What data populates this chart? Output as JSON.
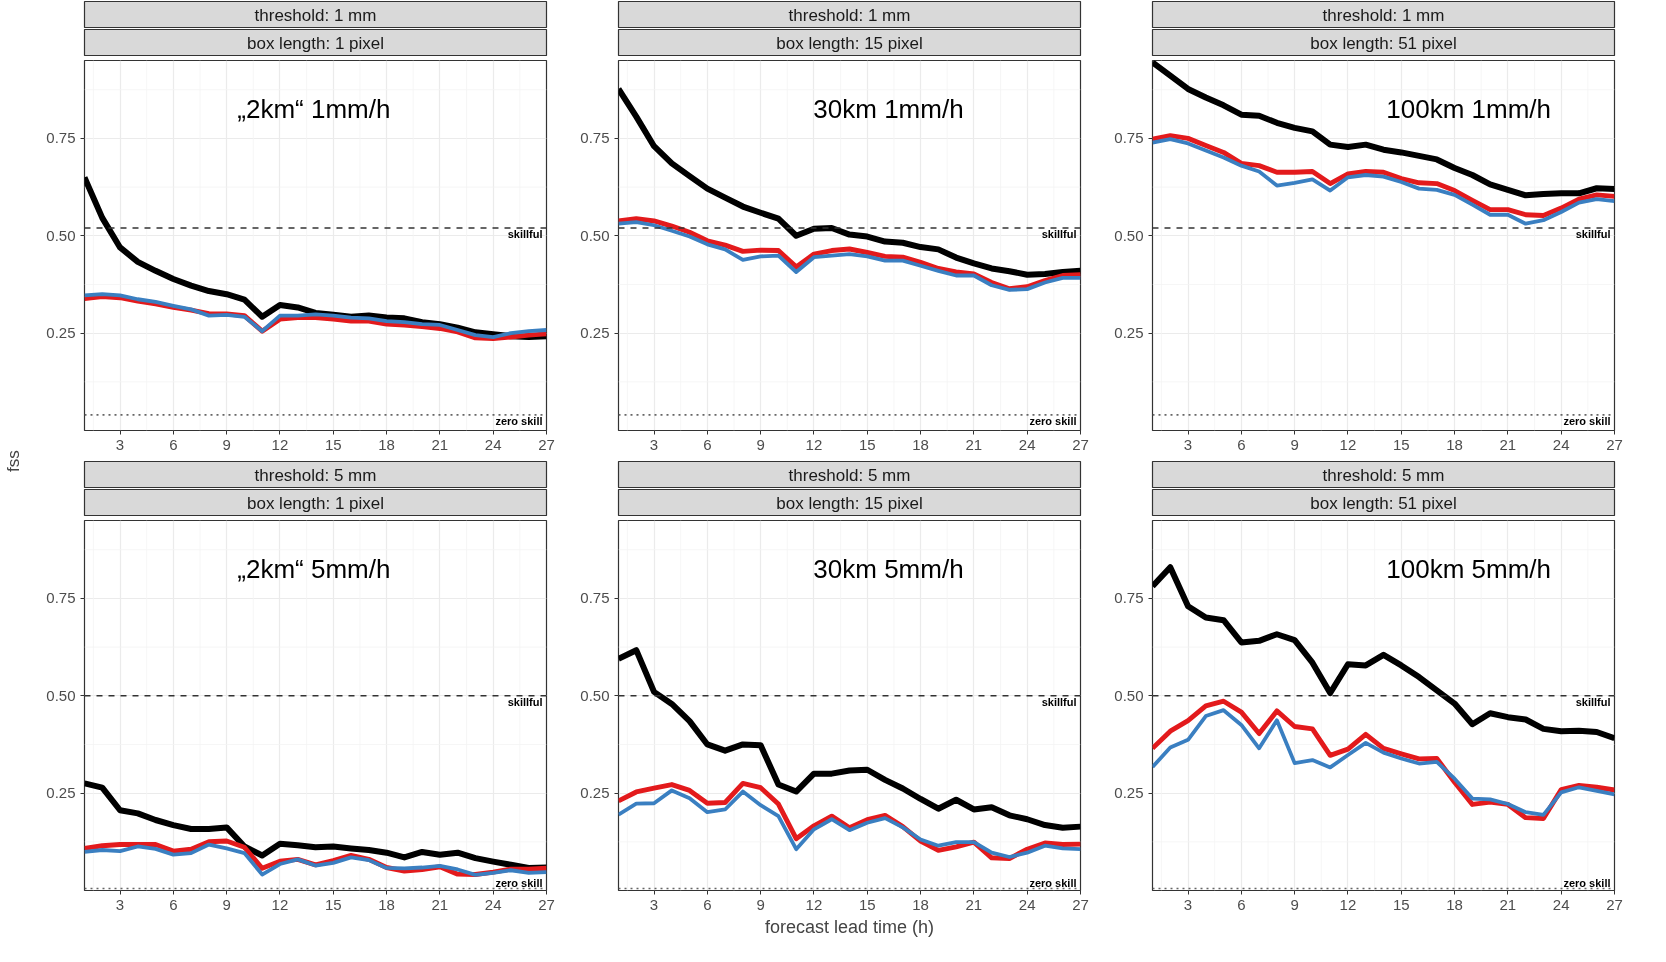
{
  "chart_data": [
    {
      "type": "line",
      "title": "threshold: 1 mm",
      "subtitle": "box length: 1 pixel",
      "ylabel": "fss",
      "annotations": [
        "„2km“    1mm/h"
      ],
      "x": [
        1,
        2,
        3,
        4,
        5,
        6,
        7,
        8,
        9,
        10,
        11,
        12,
        13,
        14,
        15,
        16,
        17,
        18,
        19,
        20,
        21,
        22,
        23,
        24,
        25,
        26,
        27
      ],
      "xlim": [
        1,
        27
      ],
      "xticks": [
        3,
        6,
        9,
        12,
        15,
        18,
        21,
        24,
        27
      ],
      "ylim": [
        0,
        0.95
      ],
      "yticks": [
        {
          "value": 0.25,
          "label": "0.25"
        },
        {
          "value": 0.5,
          "label": "0.50"
        },
        {
          "value": 0.75,
          "label": "0.75"
        }
      ],
      "grid": true,
      "ref_lines": [
        {
          "axis": "y",
          "value": 0.52,
          "label": "skillful",
          "line_style": "dashed",
          "color": "#333333"
        },
        {
          "axis": "y",
          "value": 0.04,
          "label": "zero skill",
          "line_style": "dotted",
          "color": "#666666"
        }
      ],
      "series": [
        {
          "color": "#000000",
          "values": [
            0.65,
            0.546,
            0.47,
            0.433,
            0.41,
            0.389,
            0.372,
            0.358,
            0.35,
            0.336,
            0.292,
            0.322,
            0.316,
            0.302,
            0.297,
            0.292,
            0.295,
            0.29,
            0.288,
            0.278,
            0.273,
            0.264,
            0.252,
            0.247,
            0.242,
            0.24,
            0.242
          ]
        },
        {
          "color": "#e31a1c",
          "values": [
            0.339,
            0.344,
            0.341,
            0.332,
            0.325,
            0.316,
            0.309,
            0.3,
            0.299,
            0.295,
            0.255,
            0.286,
            0.29,
            0.29,
            0.286,
            0.281,
            0.281,
            0.273,
            0.271,
            0.267,
            0.262,
            0.253,
            0.238,
            0.236,
            0.24,
            0.245,
            0.248
          ]
        },
        {
          "color": "#3a7fc1",
          "values": [
            0.347,
            0.35,
            0.347,
            0.337,
            0.33,
            0.32,
            0.311,
            0.295,
            0.297,
            0.292,
            0.255,
            0.295,
            0.295,
            0.298,
            0.295,
            0.29,
            0.288,
            0.281,
            0.278,
            0.273,
            0.271,
            0.258,
            0.245,
            0.24,
            0.25,
            0.255,
            0.258
          ]
        }
      ]
    },
    {
      "type": "line",
      "title": "threshold: 1 mm",
      "subtitle": "box length: 15 pixel",
      "annotations": [
        "30km   1mm/h"
      ],
      "x": [
        1,
        2,
        3,
        4,
        5,
        6,
        7,
        8,
        9,
        10,
        11,
        12,
        13,
        14,
        15,
        16,
        17,
        18,
        19,
        20,
        21,
        22,
        23,
        24,
        25,
        26,
        27
      ],
      "xlim": [
        1,
        27
      ],
      "xticks": [
        3,
        6,
        9,
        12,
        15,
        18,
        21,
        24,
        27
      ],
      "ylim": [
        0,
        0.95
      ],
      "yticks": [
        {
          "value": 0.25,
          "label": "0.25"
        },
        {
          "value": 0.5,
          "label": "0.50"
        },
        {
          "value": 0.75,
          "label": "0.75"
        }
      ],
      "grid": true,
      "ref_lines": [
        {
          "axis": "y",
          "value": 0.52,
          "label": "skillful",
          "line_style": "dashed",
          "color": "#333333"
        },
        {
          "axis": "y",
          "value": 0.04,
          "label": "zero skill",
          "line_style": "dotted",
          "color": "#666666"
        }
      ],
      "series": [
        {
          "color": "#000000",
          "values": [
            0.877,
            0.806,
            0.73,
            0.686,
            0.653,
            0.621,
            0.598,
            0.575,
            0.559,
            0.544,
            0.5,
            0.518,
            0.52,
            0.503,
            0.498,
            0.485,
            0.482,
            0.471,
            0.465,
            0.444,
            0.429,
            0.416,
            0.409,
            0.4,
            0.402,
            0.407,
            0.41
          ]
        },
        {
          "color": "#e31a1c",
          "values": [
            0.538,
            0.544,
            0.538,
            0.525,
            0.509,
            0.487,
            0.476,
            0.46,
            0.463,
            0.462,
            0.42,
            0.453,
            0.462,
            0.466,
            0.457,
            0.447,
            0.445,
            0.432,
            0.416,
            0.407,
            0.402,
            0.38,
            0.364,
            0.369,
            0.385,
            0.398,
            0.4
          ]
        },
        {
          "color": "#3a7fc1",
          "values": [
            0.531,
            0.535,
            0.527,
            0.513,
            0.498,
            0.478,
            0.465,
            0.438,
            0.447,
            0.449,
            0.407,
            0.445,
            0.449,
            0.453,
            0.447,
            0.436,
            0.436,
            0.423,
            0.41,
            0.398,
            0.398,
            0.373,
            0.361,
            0.363,
            0.38,
            0.392,
            0.392
          ]
        }
      ]
    },
    {
      "type": "line",
      "title": "threshold: 1 mm",
      "subtitle": "box length: 51 pixel",
      "annotations": [
        "100km   1mm/h"
      ],
      "x": [
        1,
        2,
        3,
        4,
        5,
        6,
        7,
        8,
        9,
        10,
        11,
        12,
        13,
        14,
        15,
        16,
        17,
        18,
        19,
        20,
        21,
        22,
        23,
        24,
        25,
        26,
        27
      ],
      "xlim": [
        1,
        27
      ],
      "xticks": [
        3,
        6,
        9,
        12,
        15,
        18,
        21,
        24,
        27
      ],
      "ylim": [
        0,
        0.95
      ],
      "yticks": [
        {
          "value": 0.25,
          "label": "0.25"
        },
        {
          "value": 0.5,
          "label": "0.50"
        },
        {
          "value": 0.75,
          "label": "0.75"
        }
      ],
      "grid": true,
      "ref_lines": [
        {
          "axis": "y",
          "value": 0.52,
          "label": "skillful",
          "line_style": "dashed",
          "color": "#333333"
        },
        {
          "axis": "y",
          "value": 0.04,
          "label": "zero skill",
          "line_style": "dotted",
          "color": "#666666"
        }
      ],
      "series": [
        {
          "color": "#000000",
          "values": [
            0.945,
            0.911,
            0.877,
            0.855,
            0.835,
            0.811,
            0.808,
            0.79,
            0.777,
            0.768,
            0.734,
            0.728,
            0.734,
            0.721,
            0.714,
            0.705,
            0.696,
            0.674,
            0.656,
            0.632,
            0.618,
            0.604,
            0.607,
            0.609,
            0.609,
            0.622,
            0.62
          ]
        },
        {
          "color": "#e31a1c",
          "values": [
            0.748,
            0.757,
            0.75,
            0.732,
            0.714,
            0.686,
            0.68,
            0.663,
            0.663,
            0.665,
            0.634,
            0.659,
            0.665,
            0.663,
            0.647,
            0.636,
            0.634,
            0.616,
            0.591,
            0.567,
            0.567,
            0.554,
            0.552,
            0.571,
            0.594,
            0.605,
            0.601
          ]
        },
        {
          "color": "#3a7fc1",
          "values": [
            0.739,
            0.748,
            0.737,
            0.719,
            0.701,
            0.68,
            0.665,
            0.629,
            0.636,
            0.645,
            0.616,
            0.65,
            0.656,
            0.652,
            0.638,
            0.621,
            0.618,
            0.605,
            0.58,
            0.554,
            0.554,
            0.531,
            0.54,
            0.561,
            0.585,
            0.594,
            0.589
          ]
        }
      ]
    },
    {
      "type": "line",
      "title": "threshold: 5 mm",
      "subtitle": "box length: 1 pixel",
      "annotations": [
        "„2km“    5mm/h"
      ],
      "x": [
        1,
        2,
        3,
        4,
        5,
        6,
        7,
        8,
        9,
        10,
        11,
        12,
        13,
        14,
        15,
        16,
        17,
        18,
        19,
        20,
        21,
        22,
        23,
        24,
        25,
        26,
        27
      ],
      "xlim": [
        1,
        27
      ],
      "xticks": [
        3,
        6,
        9,
        12,
        15,
        18,
        21,
        24,
        27
      ],
      "ylim": [
        0,
        0.95
      ],
      "yticks": [
        {
          "value": 0.25,
          "label": "0.25"
        },
        {
          "value": 0.5,
          "label": "0.50"
        },
        {
          "value": 0.75,
          "label": "0.75"
        }
      ],
      "grid": true,
      "ref_lines": [
        {
          "axis": "y",
          "value": 0.5,
          "label": "skillful",
          "line_style": "dashed",
          "color": "#333333"
        },
        {
          "axis": "y",
          "value": 0.005,
          "label": "zero skill",
          "line_style": "dotted",
          "color": "#666666"
        }
      ],
      "series": [
        {
          "color": "#000000",
          "values": [
            0.275,
            0.264,
            0.206,
            0.198,
            0.181,
            0.168,
            0.158,
            0.158,
            0.162,
            0.113,
            0.09,
            0.12,
            0.116,
            0.111,
            0.113,
            0.108,
            0.104,
            0.097,
            0.085,
            0.099,
            0.092,
            0.097,
            0.083,
            0.074,
            0.066,
            0.058,
            0.059
          ]
        },
        {
          "color": "#e31a1c",
          "values": [
            0.108,
            0.115,
            0.118,
            0.118,
            0.118,
            0.101,
            0.106,
            0.125,
            0.127,
            0.111,
            0.057,
            0.075,
            0.08,
            0.066,
            0.077,
            0.09,
            0.08,
            0.059,
            0.05,
            0.054,
            0.061,
            0.042,
            0.041,
            0.047,
            0.055,
            0.055,
            0.057
          ]
        },
        {
          "color": "#3a7fc1",
          "values": [
            0.099,
            0.104,
            0.101,
            0.113,
            0.107,
            0.092,
            0.096,
            0.118,
            0.108,
            0.096,
            0.041,
            0.068,
            0.08,
            0.064,
            0.071,
            0.085,
            0.078,
            0.058,
            0.057,
            0.059,
            0.063,
            0.054,
            0.04,
            0.045,
            0.052,
            0.045,
            0.047
          ]
        }
      ]
    },
    {
      "type": "line",
      "title": "threshold: 5 mm",
      "subtitle": "box length: 15 pixel",
      "xlabel": "forecast lead time (h)",
      "annotations": [
        "30km   5mm/h"
      ],
      "x": [
        1,
        2,
        3,
        4,
        5,
        6,
        7,
        8,
        9,
        10,
        11,
        12,
        13,
        14,
        15,
        16,
        17,
        18,
        19,
        20,
        21,
        22,
        23,
        24,
        25,
        26,
        27
      ],
      "xlim": [
        1,
        27
      ],
      "xticks": [
        3,
        6,
        9,
        12,
        15,
        18,
        21,
        24,
        27
      ],
      "ylim": [
        0,
        0.95
      ],
      "yticks": [
        {
          "value": 0.25,
          "label": "0.25"
        },
        {
          "value": 0.5,
          "label": "0.50"
        },
        {
          "value": 0.75,
          "label": "0.75"
        }
      ],
      "grid": true,
      "ref_lines": [
        {
          "axis": "y",
          "value": 0.5,
          "label": "skillful",
          "line_style": "dashed",
          "color": "#333333"
        },
        {
          "axis": "y",
          "value": 0.005,
          "label": "zero skill",
          "line_style": "dotted",
          "color": "#666666"
        }
      ],
      "series": [
        {
          "color": "#000000",
          "values": [
            0.595,
            0.617,
            0.51,
            0.479,
            0.435,
            0.375,
            0.359,
            0.375,
            0.373,
            0.272,
            0.254,
            0.3,
            0.3,
            0.308,
            0.31,
            0.284,
            0.262,
            0.235,
            0.21,
            0.233,
            0.208,
            0.214,
            0.193,
            0.183,
            0.168,
            0.161,
            0.164
          ]
        },
        {
          "color": "#e31a1c",
          "values": [
            0.23,
            0.253,
            0.263,
            0.272,
            0.257,
            0.224,
            0.226,
            0.275,
            0.264,
            0.222,
            0.133,
            0.166,
            0.191,
            0.161,
            0.182,
            0.193,
            0.164,
            0.127,
            0.103,
            0.112,
            0.124,
            0.084,
            0.082,
            0.106,
            0.122,
            0.118,
            0.119
          ]
        },
        {
          "color": "#3a7fc1",
          "values": [
            0.195,
            0.223,
            0.224,
            0.257,
            0.237,
            0.201,
            0.208,
            0.254,
            0.219,
            0.191,
            0.106,
            0.157,
            0.183,
            0.155,
            0.174,
            0.186,
            0.162,
            0.131,
            0.115,
            0.124,
            0.124,
            0.097,
            0.086,
            0.097,
            0.115,
            0.108,
            0.106
          ]
        }
      ]
    },
    {
      "type": "line",
      "title": "threshold: 5 mm",
      "subtitle": "box length: 51 pixel",
      "annotations": [
        "100km   5mm/h"
      ],
      "x": [
        1,
        2,
        3,
        4,
        5,
        6,
        7,
        8,
        9,
        10,
        11,
        12,
        13,
        14,
        15,
        16,
        17,
        18,
        19,
        20,
        21,
        22,
        23,
        24,
        25,
        26,
        27
      ],
      "xlim": [
        1,
        27
      ],
      "xticks": [
        3,
        6,
        9,
        12,
        15,
        18,
        21,
        24,
        27
      ],
      "ylim": [
        0,
        0.95
      ],
      "yticks": [
        {
          "value": 0.25,
          "label": "0.25"
        },
        {
          "value": 0.5,
          "label": "0.50"
        },
        {
          "value": 0.75,
          "label": "0.75"
        }
      ],
      "grid": true,
      "ref_lines": [
        {
          "axis": "y",
          "value": 0.5,
          "label": "skillful",
          "line_style": "dashed",
          "color": "#333333"
        },
        {
          "axis": "y",
          "value": 0.005,
          "label": "zero skill",
          "line_style": "dotted",
          "color": "#666666"
        }
      ],
      "series": [
        {
          "color": "#000000",
          "values": [
            0.781,
            0.83,
            0.73,
            0.701,
            0.694,
            0.637,
            0.641,
            0.658,
            0.643,
            0.585,
            0.507,
            0.581,
            0.578,
            0.605,
            0.578,
            0.548,
            0.514,
            0.48,
            0.427,
            0.455,
            0.445,
            0.439,
            0.415,
            0.409,
            0.41,
            0.407,
            0.391
          ]
        },
        {
          "color": "#e31a1c",
          "values": [
            0.365,
            0.409,
            0.436,
            0.474,
            0.486,
            0.458,
            0.403,
            0.461,
            0.421,
            0.415,
            0.347,
            0.363,
            0.401,
            0.365,
            0.351,
            0.338,
            0.339,
            0.278,
            0.221,
            0.227,
            0.221,
            0.187,
            0.185,
            0.259,
            0.27,
            0.265,
            0.258
          ]
        },
        {
          "color": "#3a7fc1",
          "values": [
            0.317,
            0.367,
            0.387,
            0.448,
            0.463,
            0.425,
            0.365,
            0.437,
            0.327,
            0.335,
            0.316,
            0.348,
            0.379,
            0.354,
            0.339,
            0.326,
            0.33,
            0.287,
            0.236,
            0.234,
            0.222,
            0.201,
            0.194,
            0.252,
            0.265,
            0.256,
            0.247
          ]
        }
      ]
    }
  ]
}
